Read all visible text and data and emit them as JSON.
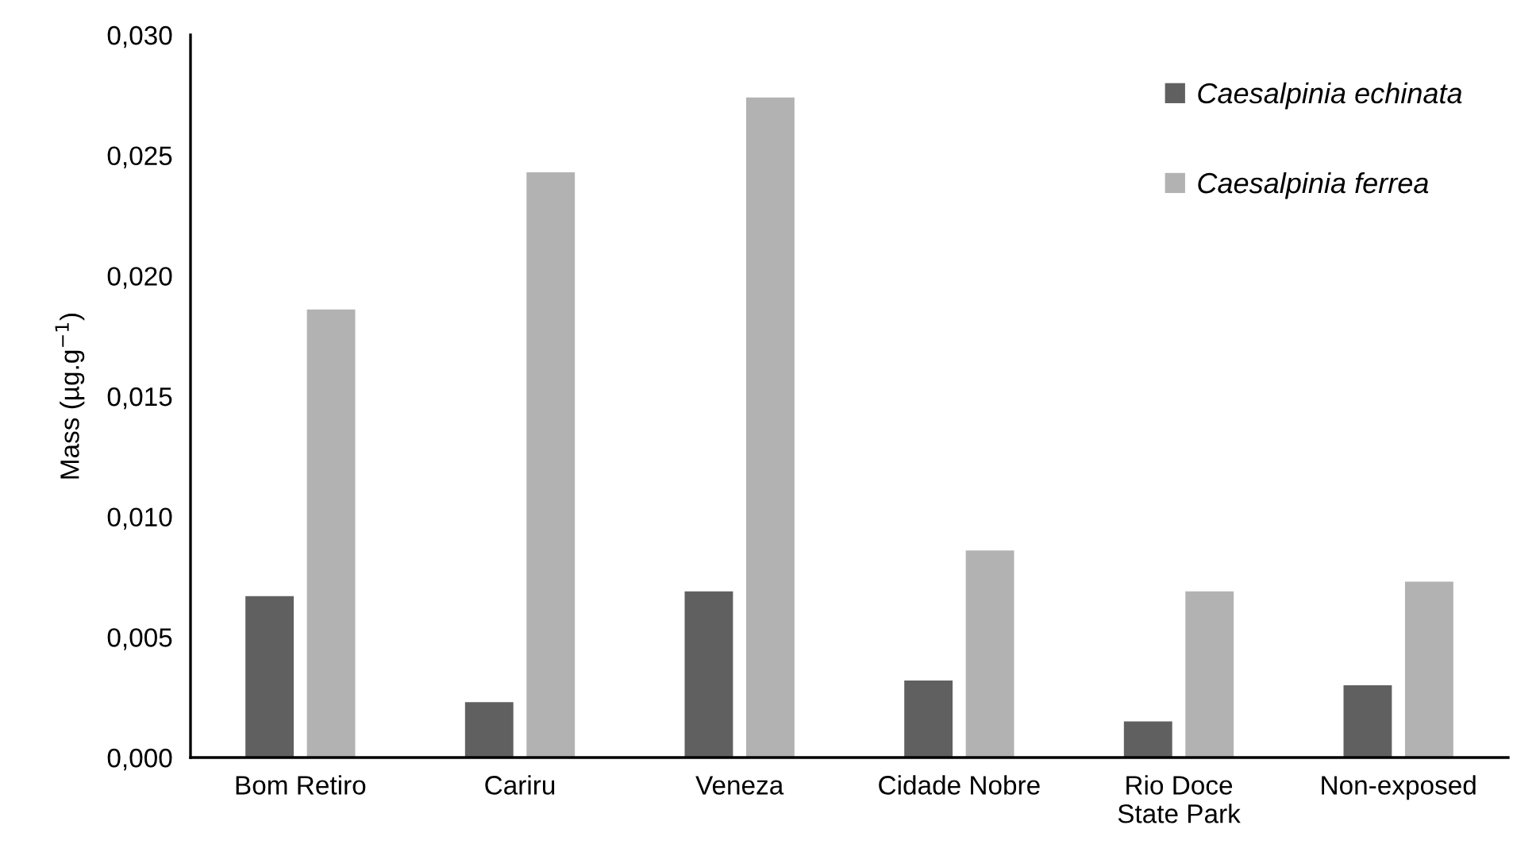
{
  "chart_data": {
    "type": "bar",
    "ylabel": "Mass (µg.g$^{−1}$)",
    "categories": [
      "Bom Retiro",
      "Cariru",
      "Veneza",
      "Cidade Nobre",
      "Rio Doce\nState Park",
      "Non-exposed"
    ],
    "series": [
      {
        "name": "Caesalpinia echinata",
        "color": "#606060",
        "values": [
          0.0067,
          0.0023,
          0.0069,
          0.0032,
          0.0015,
          0.003
        ]
      },
      {
        "name": "Caesalpinia ferrea",
        "color": "#b2b2b2",
        "values": [
          0.0186,
          0.0243,
          0.0274,
          0.0086,
          0.0069,
          0.0073
        ]
      }
    ],
    "ylim": [
      0,
      0.03
    ],
    "yticks": [
      {
        "value": 0,
        "label": "0,000"
      },
      {
        "value": 0.005,
        "label": "0,005"
      },
      {
        "value": 0.01,
        "label": "0,010"
      },
      {
        "value": 0.015,
        "label": "0,015"
      },
      {
        "value": 0.02,
        "label": "0,020"
      },
      {
        "value": 0.025,
        "label": "0,025"
      },
      {
        "value": 0.03,
        "label": "0,030"
      }
    ],
    "grid": false,
    "legend": "top right"
  }
}
